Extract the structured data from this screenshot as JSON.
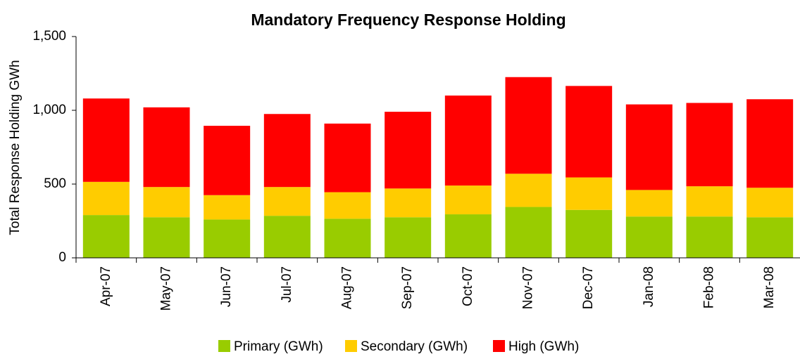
{
  "chart_data": {
    "type": "bar",
    "stacked": true,
    "title": "Mandatory Frequency Response Holding",
    "y_label": "Total Response Holding GWh",
    "categories": [
      "Apr-07",
      "May-07",
      "Jun-07",
      "Jul-07",
      "Aug-07",
      "Sep-07",
      "Oct-07",
      "Nov-07",
      "Dec-07",
      "Jan-08",
      "Feb-08",
      "Mar-08"
    ],
    "series": [
      {
        "name": "Primary (GWh)",
        "color": "#99cc00",
        "values": [
          290,
          275,
          260,
          285,
          265,
          275,
          295,
          345,
          325,
          280,
          280,
          275
        ]
      },
      {
        "name": "Secondary (GWh)",
        "color": "#ffcc00",
        "values": [
          225,
          205,
          165,
          195,
          180,
          195,
          195,
          225,
          220,
          180,
          205,
          200
        ]
      },
      {
        "name": "High (GWh)",
        "color": "#ff0000",
        "values": [
          565,
          540,
          470,
          495,
          465,
          520,
          610,
          655,
          620,
          580,
          565,
          600
        ]
      }
    ],
    "ylim": [
      0,
      1500
    ],
    "yticks": [
      0,
      500,
      {
        "value": 1000,
        "label": "1,000"
      },
      {
        "value": 1500,
        "label": "1,500"
      }
    ],
    "grid": false,
    "legend": "bottom"
  }
}
